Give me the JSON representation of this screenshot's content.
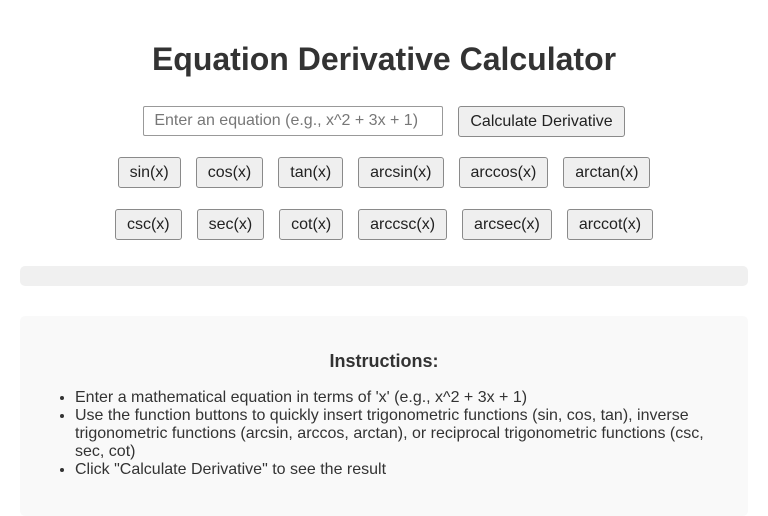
{
  "title": "Equation Derivative Calculator",
  "input": {
    "placeholder": "Enter an equation (e.g., x^2 + 3x + 1)",
    "value": ""
  },
  "calculate_label": "Calculate Derivative",
  "function_rows": [
    [
      "sin(x)",
      "cos(x)",
      "tan(x)",
      "arcsin(x)",
      "arccos(x)",
      "arctan(x)"
    ],
    [
      "csc(x)",
      "sec(x)",
      "cot(x)",
      "arccsc(x)",
      "arcsec(x)",
      "arccot(x)"
    ]
  ],
  "instructions": {
    "heading": "Instructions:",
    "items": [
      "Enter a mathematical equation in terms of 'x' (e.g., x^2 + 3x + 1)",
      "Use the function buttons to quickly insert trigonometric functions (sin, cos, tan), inverse trigonometric functions (arcsin, arccos, arctan), or reciprocal trigonometric functions (csc, sec, cot)",
      "Click \"Calculate Derivative\" to see the result"
    ]
  }
}
